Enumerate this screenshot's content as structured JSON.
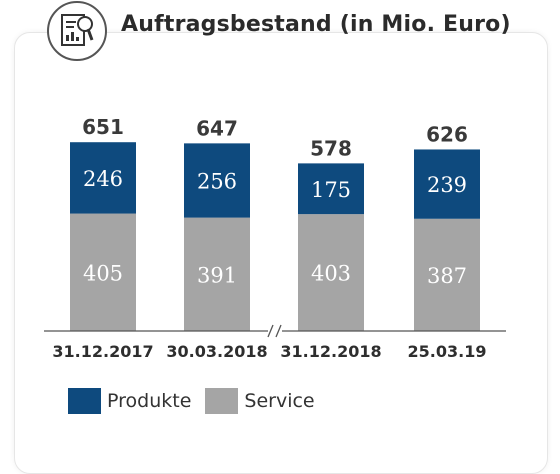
{
  "chart_data": {
    "type": "bar",
    "stacked": true,
    "title": "Auftragsbestand (in Mio. Euro)",
    "categories": [
      "31.12.2017",
      "30.03.2018",
      "31.12.2018",
      "25.03.19"
    ],
    "series": [
      {
        "name": "Service",
        "values": [
          405,
          391,
          403,
          387
        ],
        "color": "#a5a5a5"
      },
      {
        "name": "Produkte",
        "values": [
          246,
          256,
          175,
          239
        ],
        "color": "#0e4a7e"
      }
    ],
    "totals": [
      651,
      647,
      578,
      626
    ],
    "axis_break_after_category": 1,
    "legend_position": "bottom-left",
    "grid": false
  },
  "header": {
    "icon": "document-search-icon"
  },
  "legend": {
    "items": [
      {
        "label": "Produkte",
        "color": "#0e4a7e"
      },
      {
        "label": "Service",
        "color": "#a5a5a5"
      }
    ]
  }
}
